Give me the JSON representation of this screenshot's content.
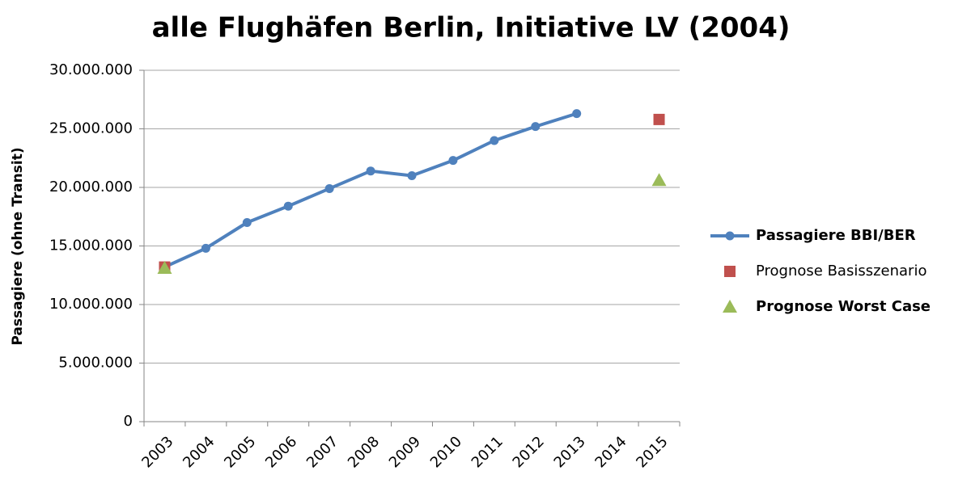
{
  "chart_data": {
    "type": "line",
    "title": "alle Flughäfen Berlin, Initiative LV (2004)",
    "y_label": "Passagiere (ohne Transit)",
    "categories": [
      "2003",
      "2004",
      "2005",
      "2006",
      "2007",
      "2008",
      "2009",
      "2010",
      "2011",
      "2012",
      "2013",
      "2014",
      "2015"
    ],
    "series": [
      {
        "name": "Passagiere BBI/BER",
        "color": "#4f81bd",
        "marker": "circle",
        "line": true,
        "values": [
          13200000,
          14800000,
          17000000,
          18400000,
          19900000,
          21400000,
          21000000,
          22300000,
          24000000,
          25200000,
          26300000,
          null,
          null
        ]
      },
      {
        "name": "Prognose Basisszenario",
        "color": "#c0504d",
        "marker": "square",
        "line": false,
        "values": [
          13200000,
          null,
          null,
          null,
          null,
          null,
          null,
          null,
          null,
          null,
          null,
          null,
          25800000
        ]
      },
      {
        "name": "Prognose Worst Case",
        "color": "#9bbb59",
        "marker": "triangle",
        "line": false,
        "values": [
          13100000,
          null,
          null,
          null,
          null,
          null,
          null,
          null,
          null,
          null,
          null,
          null,
          20600000
        ]
      }
    ],
    "ylim": [
      0,
      30000000
    ],
    "yticks": [
      0,
      {
        "value": 5000000,
        "label": "5.000.000"
      },
      {
        "value": 10000000,
        "label": "10.000.000"
      },
      {
        "value": 15000000,
        "label": "15.000.000"
      },
      {
        "value": 20000000,
        "label": "20.000.000"
      },
      {
        "value": 25000000,
        "label": "25.000.000"
      },
      {
        "value": 30000000,
        "label": "30.000.000"
      }
    ],
    "grid": true,
    "legend": "right"
  }
}
